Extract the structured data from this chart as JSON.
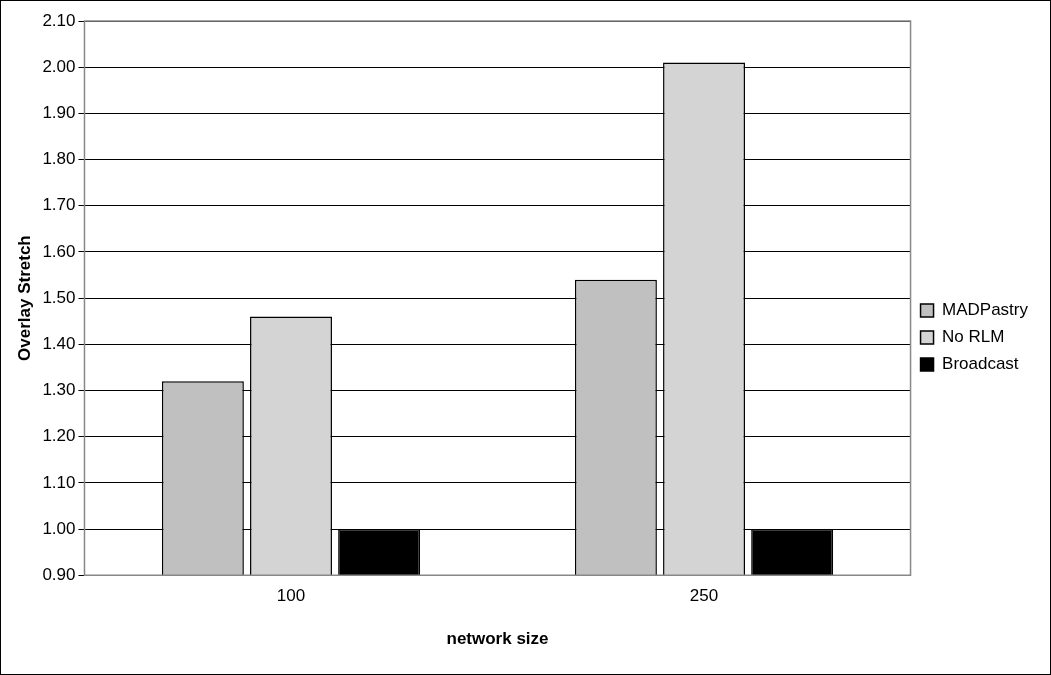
{
  "chart_data": {
    "type": "bar",
    "xlabel": "network size",
    "ylabel": "Overlay Stretch",
    "categories": [
      "100",
      "250"
    ],
    "series": [
      {
        "name": "MADPastry",
        "color": "#c0c0c0",
        "values": [
          1.32,
          1.54
        ]
      },
      {
        "name": "No RLM",
        "color": "#d4d4d4",
        "values": [
          1.46,
          2.01
        ]
      },
      {
        "name": "Broadcast",
        "color": "#000000",
        "values": [
          1.0,
          1.0
        ]
      }
    ],
    "ylim": [
      0.9,
      2.1
    ],
    "yticks": [
      {
        "value": 0.9,
        "label": "0.90"
      },
      {
        "value": 1.0,
        "label": "1.00"
      },
      {
        "value": 1.1,
        "label": "1.10"
      },
      {
        "value": 1.2,
        "label": "1.20"
      },
      {
        "value": 1.3,
        "label": "1.30"
      },
      {
        "value": 1.4,
        "label": "1.40"
      },
      {
        "value": 1.5,
        "label": "1.50"
      },
      {
        "value": 1.6,
        "label": "1.60"
      },
      {
        "value": 1.7,
        "label": "1.70"
      },
      {
        "value": 1.8,
        "label": "1.80"
      },
      {
        "value": 1.9,
        "label": "1.90"
      },
      {
        "value": 2.0,
        "label": "2.00"
      },
      {
        "value": 2.1,
        "label": "2.10"
      }
    ],
    "grid": "y",
    "legend": "right"
  }
}
